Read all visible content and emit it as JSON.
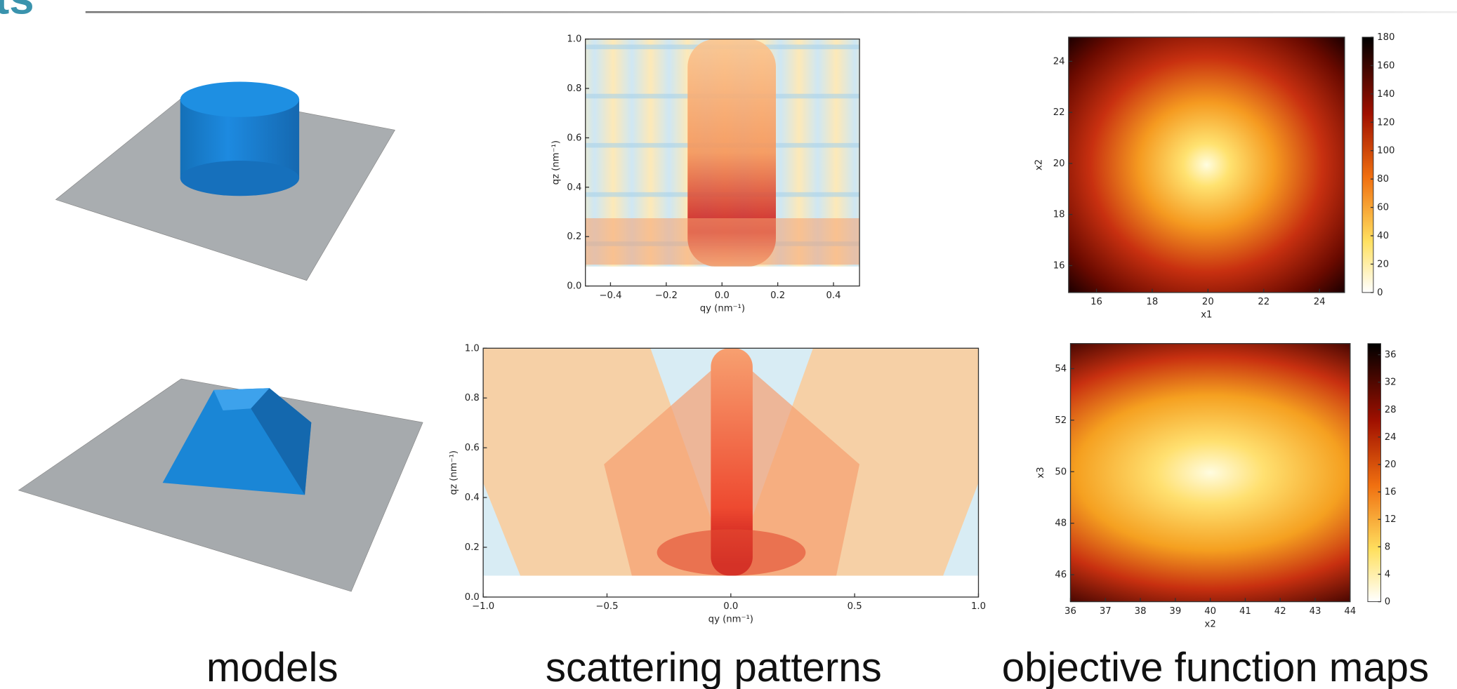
{
  "header": {
    "title": "ts"
  },
  "models": {
    "caption": "models"
  },
  "scattering_patterns": {
    "caption": "scattering patterns",
    "plots": [
      {
        "x_label": "qy (nm⁻¹)",
        "y_label": "qz (nm⁻¹)",
        "x_ticks": [
          "−0.4",
          "−0.2",
          "0.0",
          "0.2",
          "0.4"
        ],
        "y_ticks": [
          "0.0",
          "0.2",
          "0.4",
          "0.6",
          "0.8",
          "1.0"
        ]
      },
      {
        "x_label": "qy (nm⁻¹)",
        "y_label": "qz (nm⁻¹)",
        "x_ticks": [
          "−1.0",
          "−0.5",
          "0.0",
          "0.5",
          "1.0"
        ],
        "y_ticks": [
          "0.0",
          "0.2",
          "0.4",
          "0.6",
          "0.8",
          "1.0"
        ]
      }
    ]
  },
  "objective_function_maps": {
    "caption": "objective function maps",
    "plots": [
      {
        "x_label": "x1",
        "y_label": "x2",
        "x_ticks": [
          "16",
          "18",
          "20",
          "22",
          "24"
        ],
        "y_ticks": [
          "16",
          "18",
          "20",
          "22",
          "24"
        ],
        "colorbar_ticks": [
          "0",
          "20",
          "40",
          "60",
          "80",
          "100",
          "120",
          "140",
          "160",
          "180"
        ]
      },
      {
        "x_label": "x2",
        "y_label": "x3",
        "x_ticks": [
          "36",
          "37",
          "38",
          "39",
          "40",
          "41",
          "42",
          "43",
          "44"
        ],
        "y_ticks": [
          "46",
          "48",
          "50",
          "52",
          "54"
        ],
        "colorbar_ticks": [
          "0",
          "4",
          "8",
          "12",
          "16",
          "20",
          "24",
          "28",
          "32",
          "36"
        ]
      }
    ]
  }
}
